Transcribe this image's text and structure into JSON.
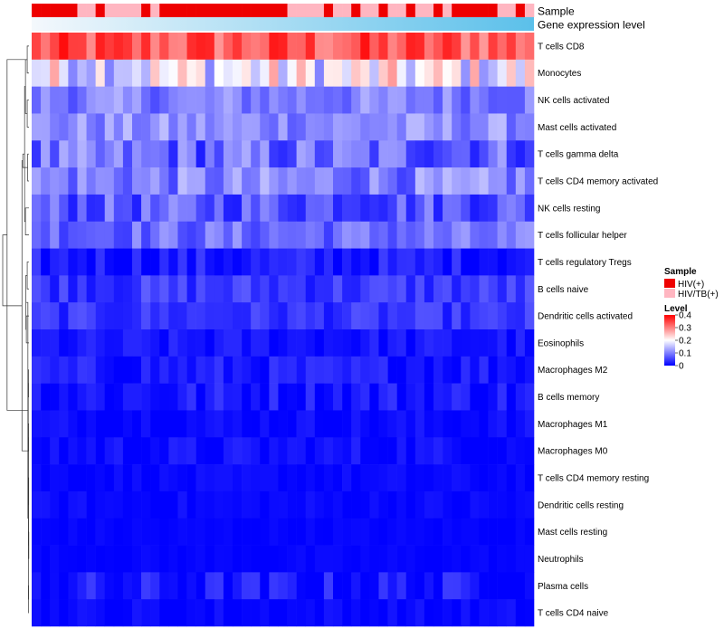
{
  "chart_data": {
    "type": "heatmap",
    "title": "",
    "column_count": 55,
    "annotation_tracks": [
      {
        "name": "Sample",
        "kind": "categorical"
      },
      {
        "name": "Gene expression level",
        "kind": "continuous"
      }
    ],
    "sample_groups": [
      {
        "label": "HIV(+)",
        "color": "#ee0000"
      },
      {
        "label": "HIV/TB(+)",
        "color": "#ffb6c1"
      }
    ],
    "sample_annotation": "RRRRRPPRPPPPRPRRRRRRRRRRRRRRPPPPRPPRPPRPPRPPRPRRRRRPPRP",
    "level_gradient": [
      "#f4f8fc",
      "#5bc0ea"
    ],
    "legend": {
      "sample_title": "Sample",
      "level_title": "Level",
      "level_ticks": [
        0,
        0.1,
        0.2,
        0.3,
        0.4
      ],
      "placement": "right"
    },
    "color_scale": {
      "min": 0,
      "max": 0.4,
      "low": "#0000ff",
      "mid": "#ffffff",
      "mid_value": 0.2,
      "high": "#ff0000"
    },
    "rows": [
      {
        "name": "T cells CD8",
        "mean": 0.33,
        "spread": 0.06
      },
      {
        "name": "Monocytes",
        "mean": 0.19,
        "spread": 0.09
      },
      {
        "name": "NK cells activated",
        "mean": 0.1,
        "spread": 0.04
      },
      {
        "name": "Mast cells activated",
        "mean": 0.11,
        "spread": 0.04
      },
      {
        "name": "T cells gamma delta",
        "mean": 0.08,
        "spread": 0.06
      },
      {
        "name": "T cells CD4 memory activated",
        "mean": 0.1,
        "spread": 0.05
      },
      {
        "name": "NK cells resting",
        "mean": 0.07,
        "spread": 0.05
      },
      {
        "name": "T cells follicular helper",
        "mean": 0.085,
        "spread": 0.04
      },
      {
        "name": "T cells regulatory  Tregs",
        "mean": 0.02,
        "spread": 0.03
      },
      {
        "name": "B cells naive",
        "mean": 0.045,
        "spread": 0.03
      },
      {
        "name": "Dendritic cells activated",
        "mean": 0.04,
        "spread": 0.025
      },
      {
        "name": "Eosinophils",
        "mean": 0.015,
        "spread": 0.02
      },
      {
        "name": "Macrophages M2",
        "mean": 0.02,
        "spread": 0.025
      },
      {
        "name": "B cells memory",
        "mean": 0.018,
        "spread": 0.03
      },
      {
        "name": "Macrophages M1",
        "mean": 0.008,
        "spread": 0.015
      },
      {
        "name": "Macrophages M0",
        "mean": 0.01,
        "spread": 0.02
      },
      {
        "name": "T cells CD4 memory resting",
        "mean": 0.005,
        "spread": 0.01
      },
      {
        "name": "Dendritic cells resting",
        "mean": 0.005,
        "spread": 0.012
      },
      {
        "name": "Mast cells resting",
        "mean": 0.003,
        "spread": 0.006
      },
      {
        "name": "Neutrophils",
        "mean": 0.003,
        "spread": 0.006
      },
      {
        "name": "Plasma cells",
        "mean": 0.015,
        "spread": 0.035
      },
      {
        "name": "T cells CD4 naive",
        "mean": 0.004,
        "spread": 0.015
      }
    ],
    "dendrogram": [
      [
        0,
        1,
        0.02
      ],
      [
        2,
        3,
        0.02
      ],
      [
        4,
        5,
        0.015
      ],
      [
        22,
        23,
        0.04
      ],
      [
        6,
        7,
        0.04
      ],
      [
        25,
        26,
        0.05
      ],
      [
        24,
        27,
        0.07
      ],
      [
        8,
        9,
        0.02
      ],
      [
        10,
        11,
        0.03
      ],
      [
        29,
        30,
        0.035
      ],
      [
        12,
        13,
        0.005
      ],
      [
        14,
        15,
        0.005
      ],
      [
        16,
        17,
        0.003
      ],
      [
        18,
        19,
        0.002
      ],
      [
        20,
        21,
        0.004
      ],
      [
        34,
        35,
        0.005
      ],
      [
        36,
        33,
        0.006
      ],
      [
        37,
        32,
        0.008
      ],
      [
        38,
        31,
        0.012
      ],
      [
        39,
        28,
        0.08
      ],
      [
        40,
        22,
        0.25
      ],
      [
        41,
        42,
        0.3
      ]
    ]
  }
}
